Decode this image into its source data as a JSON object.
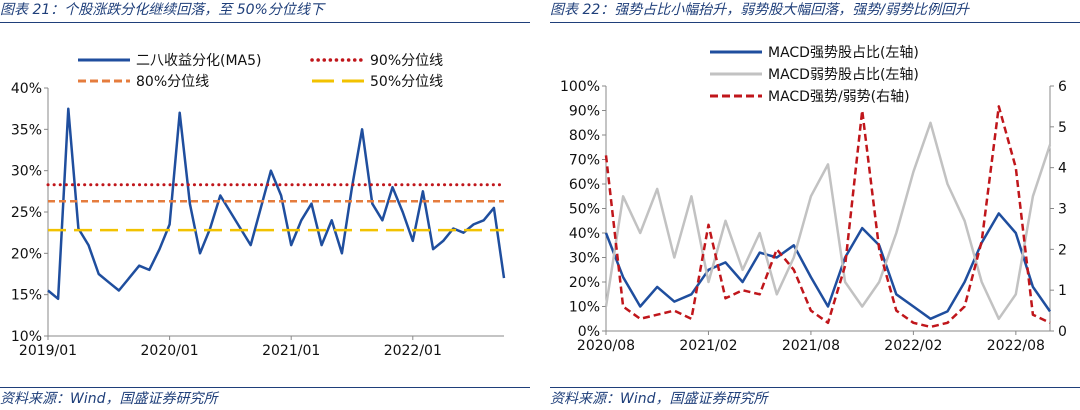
{
  "left": {
    "title": "图表 21：个股涨跌分化继续回落，至 50%分位线下",
    "source": "资料来源：Wind，国盛证券研究所",
    "chart_data": {
      "type": "line",
      "ylim": [
        0.1,
        0.4
      ],
      "yticks": [
        "40%",
        "35%",
        "30%",
        "25%",
        "20%",
        "15%",
        "10%"
      ],
      "ytick_values": [
        0.4,
        0.35,
        0.3,
        0.25,
        0.2,
        0.15,
        0.1
      ],
      "xlim": [
        "2019-01",
        "2022-10"
      ],
      "xticks": [
        "2019/01",
        "2020/01",
        "2021/01",
        "2022/01"
      ],
      "xtick_values": [
        "2019-01",
        "2020-01",
        "2021-01",
        "2022-01"
      ],
      "series": [
        {
          "name": "二八收益分化(MA5)",
          "color": "#1f4e9e",
          "style": "solid",
          "x": [
            "2019-01",
            "2019-02",
            "2019-03",
            "2019-04",
            "2019-05",
            "2019-06",
            "2019-07",
            "2019-08",
            "2019-09",
            "2019-10",
            "2019-11",
            "2019-12",
            "2020-01",
            "2020-02",
            "2020-03",
            "2020-04",
            "2020-05",
            "2020-06",
            "2020-07",
            "2020-08",
            "2020-09",
            "2020-10",
            "2020-11",
            "2020-12",
            "2021-01",
            "2021-02",
            "2021-03",
            "2021-04",
            "2021-05",
            "2021-06",
            "2021-07",
            "2021-08",
            "2021-09",
            "2021-10",
            "2021-11",
            "2021-12",
            "2022-01",
            "2022-02",
            "2022-03",
            "2022-04",
            "2022-05",
            "2022-06",
            "2022-07",
            "2022-08",
            "2022-09",
            "2022-10"
          ],
          "values": [
            0.155,
            0.145,
            0.375,
            0.23,
            0.21,
            0.175,
            0.165,
            0.155,
            0.17,
            0.185,
            0.18,
            0.205,
            0.235,
            0.37,
            0.26,
            0.2,
            0.23,
            0.27,
            0.25,
            0.23,
            0.21,
            0.255,
            0.3,
            0.27,
            0.21,
            0.24,
            0.26,
            0.21,
            0.24,
            0.2,
            0.28,
            0.35,
            0.26,
            0.24,
            0.28,
            0.25,
            0.215,
            0.275,
            0.205,
            0.215,
            0.23,
            0.225,
            0.235,
            0.24,
            0.255,
            0.17
          ]
        },
        {
          "name": "90%分位线",
          "color": "#c0161b",
          "style": "dotted",
          "value": 0.283
        },
        {
          "name": "80%分位线",
          "color": "#e57c3e",
          "style": "dashed",
          "value": 0.263
        },
        {
          "name": "50%分位线",
          "color": "#f2c200",
          "style": "longdash",
          "value": 0.228
        }
      ]
    }
  },
  "right": {
    "title": "图表 22：强势占比小幅抬升，弱势股大幅回落，强势/弱势比例回升",
    "source": "资料来源：Wind，国盛证券研究所",
    "chart_data": {
      "type": "line",
      "ylim": [
        0,
        1.0
      ],
      "y2lim": [
        0,
        6
      ],
      "yticks": [
        "100%",
        "90%",
        "80%",
        "70%",
        "60%",
        "50%",
        "40%",
        "30%",
        "20%",
        "10%",
        "0%"
      ],
      "ytick_values": [
        1.0,
        0.9,
        0.8,
        0.7,
        0.6,
        0.5,
        0.4,
        0.3,
        0.2,
        0.1,
        0.0
      ],
      "y2ticks": [
        "6",
        "5",
        "4",
        "3",
        "2",
        "1",
        "0"
      ],
      "y2tick_values": [
        6,
        5,
        4,
        3,
        2,
        1,
        0
      ],
      "xlim": [
        "2020-08",
        "2022-10"
      ],
      "xticks": [
        "2020/08",
        "2021/02",
        "2021/08",
        "2022/02",
        "2022/08"
      ],
      "xtick_values": [
        "2020-08",
        "2021-02",
        "2021-08",
        "2022-02",
        "2022-08"
      ],
      "series": [
        {
          "name": "MACD强势股占比(左轴)",
          "color": "#1f4e9e",
          "style": "solid",
          "axis": "left",
          "x": [
            "2020-08",
            "2020-09",
            "2020-10",
            "2020-11",
            "2020-12",
            "2021-01",
            "2021-02",
            "2021-03",
            "2021-04",
            "2021-05",
            "2021-06",
            "2021-07",
            "2021-08",
            "2021-09",
            "2021-10",
            "2021-11",
            "2021-12",
            "2022-01",
            "2022-02",
            "2022-03",
            "2022-04",
            "2022-05",
            "2022-06",
            "2022-07",
            "2022-08",
            "2022-09",
            "2022-10"
          ],
          "values": [
            0.4,
            0.22,
            0.1,
            0.18,
            0.12,
            0.15,
            0.25,
            0.28,
            0.2,
            0.32,
            0.3,
            0.35,
            0.22,
            0.1,
            0.3,
            0.42,
            0.35,
            0.15,
            0.1,
            0.05,
            0.08,
            0.2,
            0.36,
            0.48,
            0.4,
            0.18,
            0.08
          ]
        },
        {
          "name": "MACD弱势股占比(左轴)",
          "color": "#c2c2c2",
          "style": "solid",
          "axis": "left",
          "x": [
            "2020-08",
            "2020-09",
            "2020-10",
            "2020-11",
            "2020-12",
            "2021-01",
            "2021-02",
            "2021-03",
            "2021-04",
            "2021-05",
            "2021-06",
            "2021-07",
            "2021-08",
            "2021-09",
            "2021-10",
            "2021-11",
            "2021-12",
            "2022-01",
            "2022-02",
            "2022-03",
            "2022-04",
            "2022-05",
            "2022-06",
            "2022-07",
            "2022-08",
            "2022-09",
            "2022-10"
          ],
          "values": [
            0.1,
            0.55,
            0.4,
            0.58,
            0.3,
            0.55,
            0.2,
            0.45,
            0.25,
            0.4,
            0.15,
            0.3,
            0.55,
            0.68,
            0.2,
            0.1,
            0.2,
            0.4,
            0.65,
            0.85,
            0.6,
            0.45,
            0.2,
            0.05,
            0.15,
            0.55,
            0.76
          ]
        },
        {
          "name": "MACD强势/弱势(右轴)",
          "color": "#c0161b",
          "style": "dashed",
          "axis": "right",
          "x": [
            "2020-08",
            "2020-09",
            "2020-10",
            "2020-11",
            "2020-12",
            "2021-01",
            "2021-02",
            "2021-03",
            "2021-04",
            "2021-05",
            "2021-06",
            "2021-07",
            "2021-08",
            "2021-09",
            "2021-10",
            "2021-11",
            "2021-12",
            "2022-01",
            "2022-02",
            "2022-03",
            "2022-04",
            "2022-05",
            "2022-06",
            "2022-07",
            "2022-08",
            "2022-09",
            "2022-10"
          ],
          "values": [
            4.3,
            0.6,
            0.3,
            0.4,
            0.5,
            0.3,
            2.6,
            0.8,
            1.0,
            0.9,
            2.0,
            1.5,
            0.5,
            0.2,
            1.6,
            5.4,
            2.0,
            0.5,
            0.2,
            0.1,
            0.2,
            0.6,
            2.2,
            5.5,
            4.0,
            0.4,
            0.2
          ]
        }
      ]
    }
  }
}
